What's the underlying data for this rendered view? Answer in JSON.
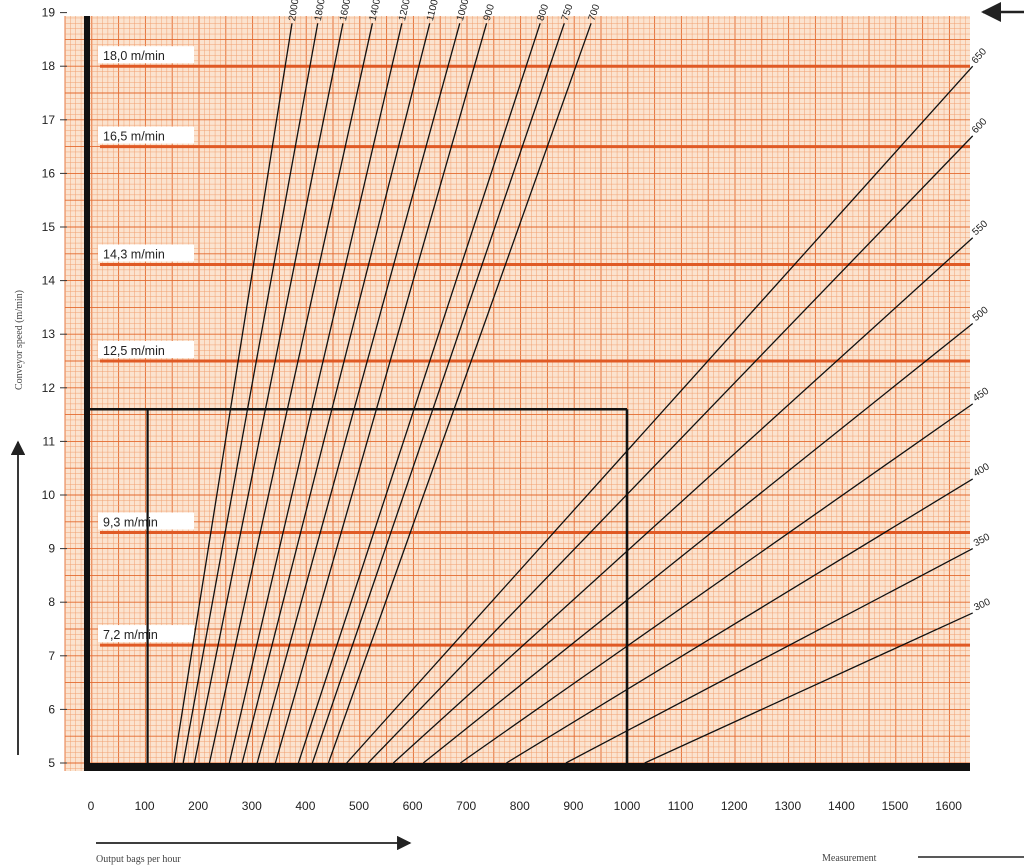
{
  "chart_data": {
    "type": "line",
    "xlabel": "Output bags per hour",
    "ylabel": "Conveyor speed (m/min)",
    "measurement_label": "Measurement",
    "xlim": [
      0,
      1650
    ],
    "ylim": [
      4.8,
      19
    ],
    "x_ticks": [
      0,
      100,
      200,
      300,
      400,
      500,
      600,
      700,
      800,
      900,
      1000,
      1100,
      1200,
      1300,
      1400,
      1500,
      1600
    ],
    "y_ticks": [
      5,
      6,
      7,
      8,
      9,
      10,
      11,
      12,
      13,
      14,
      15,
      16,
      17,
      18,
      19
    ],
    "grid": true,
    "speed_levels": [
      {
        "label": "18,0 m/min",
        "value": 18.0
      },
      {
        "label": "16,5 m/min",
        "value": 16.5
      },
      {
        "label": "14,3 m/min",
        "value": 14.3
      },
      {
        "label": "12,5 m/min",
        "value": 12.5
      },
      {
        "label": "9,3 m/min",
        "value": 9.3
      },
      {
        "label": "7,2 m/min",
        "value": 7.2
      }
    ],
    "series": [
      {
        "name": "2000",
        "points": [
          [
            155,
            5.0
          ],
          [
            375,
            18.8
          ]
        ]
      },
      {
        "name": "1800",
        "points": [
          [
            172,
            5.0
          ],
          [
            423,
            18.8
          ]
        ]
      },
      {
        "name": "1600",
        "points": [
          [
            193,
            5.0
          ],
          [
            470,
            18.8
          ]
        ]
      },
      {
        "name": "1400",
        "points": [
          [
            221,
            5.0
          ],
          [
            525,
            18.8
          ]
        ]
      },
      {
        "name": "1200",
        "points": [
          [
            258,
            5.0
          ],
          [
            580,
            18.8
          ]
        ]
      },
      {
        "name": "1100",
        "points": [
          [
            282,
            5.0
          ],
          [
            632,
            18.8
          ]
        ]
      },
      {
        "name": "1000",
        "points": [
          [
            310,
            5.0
          ],
          [
            688,
            18.8
          ]
        ]
      },
      {
        "name": "900",
        "points": [
          [
            344,
            5.0
          ],
          [
            738,
            18.8
          ]
        ]
      },
      {
        "name": "800",
        "points": [
          [
            387,
            5.0
          ],
          [
            838,
            18.8
          ]
        ]
      },
      {
        "name": "750",
        "points": [
          [
            413,
            5.0
          ],
          [
            883,
            18.8
          ]
        ]
      },
      {
        "name": "700",
        "points": [
          [
            443,
            5.0
          ],
          [
            933,
            18.8
          ]
        ]
      },
      {
        "name": "650",
        "points": [
          [
            477,
            5.0
          ],
          [
            1645,
            18.0
          ]
        ]
      },
      {
        "name": "600",
        "points": [
          [
            517,
            5.0
          ],
          [
            1645,
            16.7
          ]
        ]
      },
      {
        "name": "550",
        "points": [
          [
            564,
            5.0
          ],
          [
            1645,
            14.8
          ]
        ]
      },
      {
        "name": "500",
        "points": [
          [
            620,
            5.0
          ],
          [
            1645,
            13.2
          ]
        ]
      },
      {
        "name": "450",
        "points": [
          [
            689,
            5.0
          ],
          [
            1645,
            11.7
          ]
        ]
      },
      {
        "name": "400",
        "points": [
          [
            775,
            5.0
          ],
          [
            1645,
            10.3
          ]
        ]
      },
      {
        "name": "350",
        "points": [
          [
            886,
            5.0
          ],
          [
            1645,
            9.0
          ]
        ]
      },
      {
        "name": "300",
        "points": [
          [
            1033,
            5.0
          ],
          [
            1645,
            7.8
          ]
        ]
      }
    ],
    "example_reading": {
      "x": 1000,
      "y": 11.6
    }
  }
}
